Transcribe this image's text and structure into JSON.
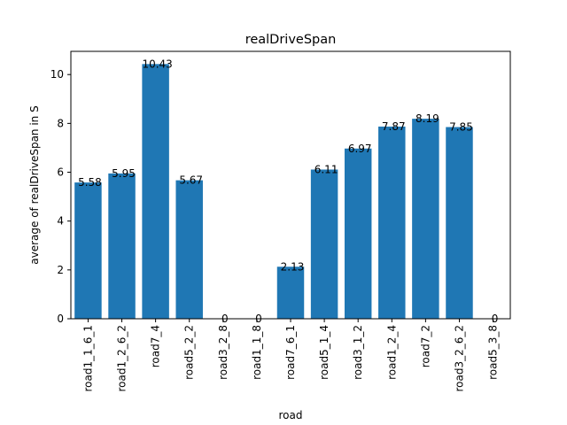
{
  "chart_data": {
    "type": "bar",
    "title": "realDriveSpan",
    "xlabel": "road",
    "ylabel": "average of realDriveSpan in S",
    "categories": [
      "road1_1_6_1",
      "road1_2_6_2",
      "road7_4",
      "road5_2_2",
      "road3_2_8",
      "road1_1_8",
      "road7_6_1",
      "road5_1_4",
      "road3_1_2",
      "road1_2_4",
      "road7_2",
      "road3_2_6_2",
      "road5_3_8"
    ],
    "values": [
      5.58,
      5.95,
      10.43,
      5.67,
      0,
      0,
      2.13,
      6.11,
      6.97,
      7.87,
      8.19,
      7.85,
      0
    ],
    "value_labels": [
      "5.58",
      "5.95",
      "10.43",
      "5.67",
      "0",
      "0",
      "2.13",
      "6.11",
      "6.97",
      "7.87",
      "8.19",
      "7.85",
      "0"
    ],
    "ylim": [
      0,
      10.95
    ],
    "yticks": [
      0,
      2,
      4,
      6,
      8,
      10
    ],
    "bar_color": "#1f77b4",
    "grid": false,
    "legend": "none"
  }
}
